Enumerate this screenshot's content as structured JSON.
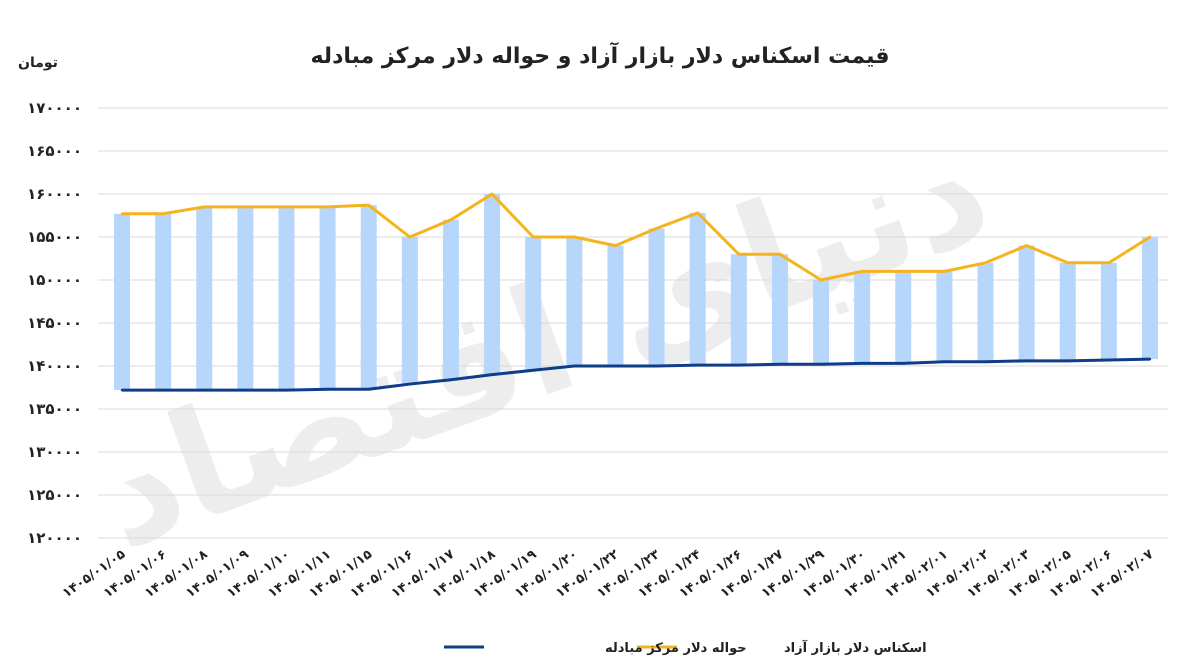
{
  "chart_data": {
    "type": "bar",
    "title": "قیمت اسکناس دلار بازار آزاد و حواله دلار مرکز مبادله",
    "ylabel": "تومان",
    "ylim": [
      120000,
      170000
    ],
    "yticks": [
      120000,
      125000,
      130000,
      135000,
      140000,
      145000,
      150000,
      155000,
      160000,
      165000,
      170000
    ],
    "ytick_labels": [
      "۱۲۰۰۰۰",
      "۱۲۵۰۰۰",
      "۱۳۰۰۰۰",
      "۱۳۵۰۰۰",
      "۱۴۰۰۰۰",
      "۱۴۵۰۰۰",
      "۱۵۰۰۰۰",
      "۱۵۵۰۰۰",
      "۱۶۰۰۰۰",
      "۱۶۵۰۰۰",
      "۱۷۰۰۰۰"
    ],
    "categories": [
      "۱۴۰۵/۰۱/۰۵",
      "۱۴۰۵/۰۱/۰۶",
      "۱۴۰۵/۰۱/۰۸",
      "۱۴۰۵/۰۱/۰۹",
      "۱۴۰۵/۰۱/۱۰",
      "۱۴۰۵/۰۱/۱۱",
      "۱۴۰۵/۰۱/۱۵",
      "۱۴۰۵/۰۱/۱۶",
      "۱۴۰۵/۰۱/۱۷",
      "۱۴۰۵/۰۱/۱۸",
      "۱۴۰۵/۰۱/۱۹",
      "۱۴۰۵/۰۱/۲۰",
      "۱۴۰۵/۰۱/۲۲",
      "۱۴۰۵/۰۱/۲۳",
      "۱۴۰۵/۰۱/۲۴",
      "۱۴۰۵/۰۱/۲۶",
      "۱۴۰۵/۰۱/۲۷",
      "۱۴۰۵/۰۱/۲۹",
      "۱۴۰۵/۰۱/۳۰",
      "۱۴۰۵/۰۱/۳۱",
      "۱۴۰۵/۰۲/۰۱",
      "۱۴۰۵/۰۲/۰۲",
      "۱۴۰۵/۰۲/۰۳",
      "۱۴۰۵/۰۲/۰۵",
      "۱۴۰۵/۰۲/۰۶",
      "۱۴۰۵/۰۲/۰۷"
    ],
    "series": [
      {
        "name": "اسکناس دلار بازار آزاد",
        "color": "#f5b41e",
        "values": [
          157700,
          157700,
          158500,
          158500,
          158500,
          158500,
          158700,
          155000,
          157000,
          160000,
          155000,
          155000,
          154000,
          156000,
          157800,
          153000,
          153000,
          150000,
          151000,
          151000,
          151000,
          152000,
          154000,
          152000,
          152000,
          155000
        ]
      },
      {
        "name": "حواله دلار مرکز مبادله",
        "color": "#0f3d87",
        "values": [
          137200,
          137200,
          137200,
          137200,
          137200,
          137300,
          137300,
          137900,
          138400,
          139000,
          139500,
          140000,
          140000,
          140000,
          140100,
          140100,
          140200,
          140200,
          140300,
          140300,
          140500,
          140500,
          140600,
          140600,
          140700,
          140800
        ]
      }
    ],
    "bar_color": "#b7d6fb",
    "grid": true,
    "legend_position": "bottom"
  }
}
